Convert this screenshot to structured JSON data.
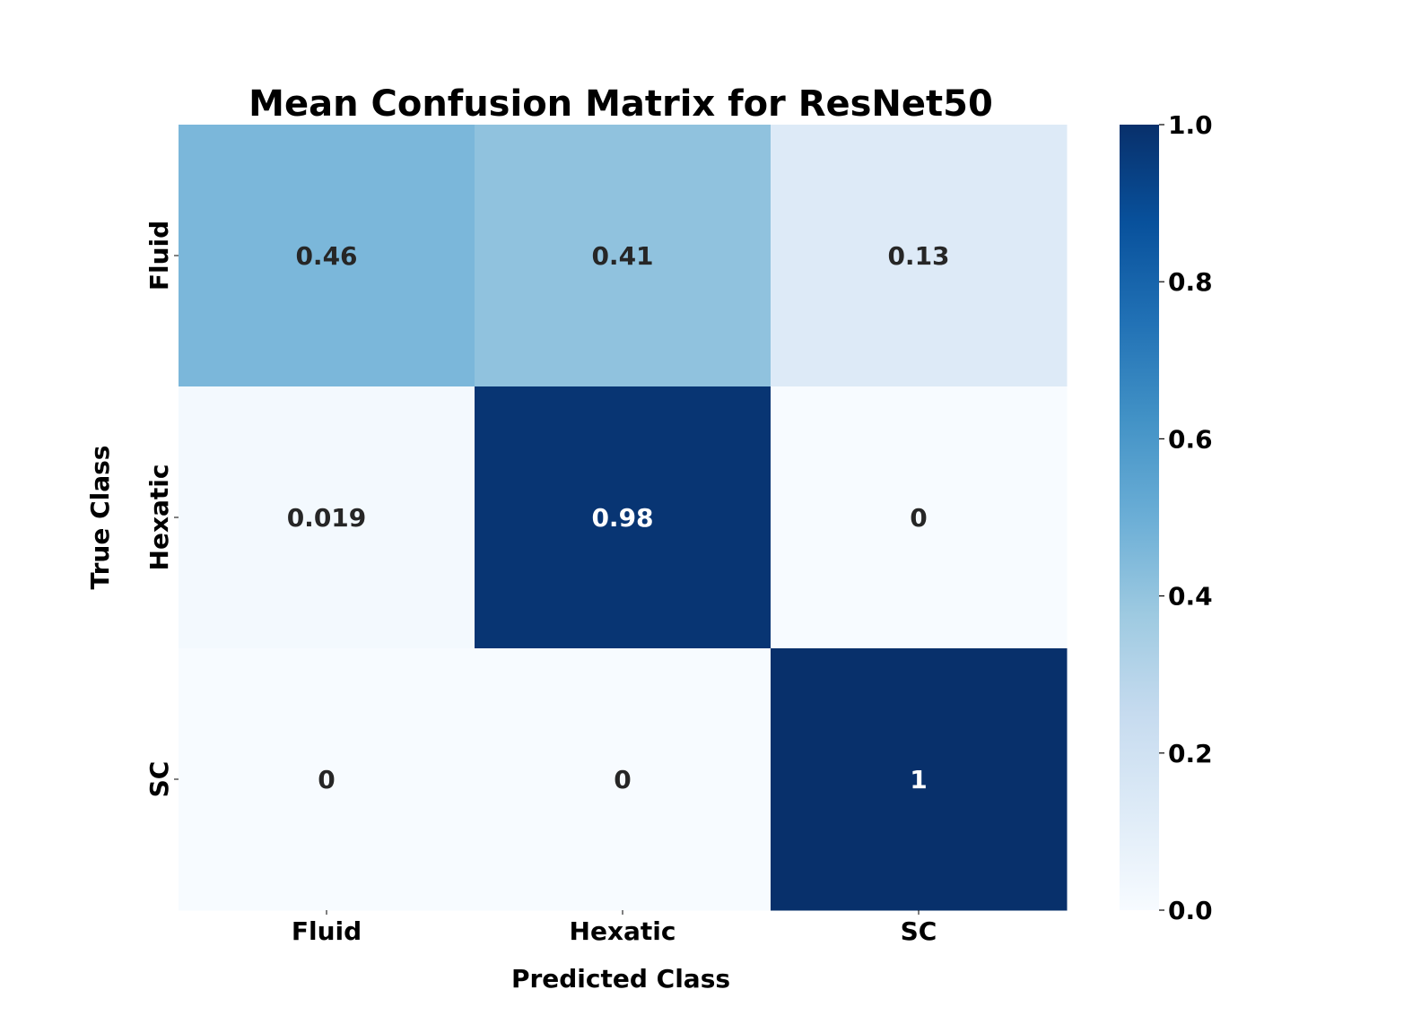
{
  "chart_data": {
    "type": "heatmap",
    "title": "Mean Confusion Matrix for ResNet50",
    "xlabel": "Predicted Class",
    "ylabel": "True Class",
    "x_categories": [
      "Fluid",
      "Hexatic",
      "SC"
    ],
    "y_categories": [
      "Fluid",
      "Hexatic",
      "SC"
    ],
    "values": [
      [
        0.46,
        0.41,
        0.13
      ],
      [
        0.019,
        0.98,
        0
      ],
      [
        0,
        0,
        1
      ]
    ],
    "annotations": [
      [
        "0.46",
        "0.41",
        "0.13"
      ],
      [
        "0.019",
        "0.98",
        "0"
      ],
      [
        "0",
        "0",
        "1"
      ]
    ],
    "colormap": "Blues",
    "vmin": 0,
    "vmax": 1,
    "colorbar_ticks": [
      "0.0",
      "0.2",
      "0.4",
      "0.6",
      "0.8",
      "1.0"
    ],
    "colors": {
      "dark_text": "#262626",
      "light_text": "#ffffff",
      "axis": "#000000"
    }
  }
}
